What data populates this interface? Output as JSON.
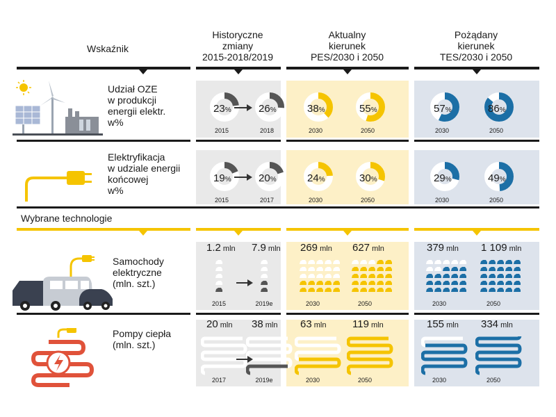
{
  "colors": {
    "black": "#1a1a1a",
    "yellow": "#f5c400",
    "gray": "#e9e9e9",
    "yellowbg": "#fdf0c7",
    "bluebg": "#dde3ec",
    "blue": "#1c6fa6",
    "dark": "#555555"
  },
  "header": {
    "indicator": "Wskaźnik",
    "historical": "Historyczne\nzmiany\n2015-2018/2019",
    "current": "Aktualny\nkierunek\nPES/2030 i 2050",
    "desired": "Pożądany\nkierunek\nTES/2030 i 2050"
  },
  "section_label": "Wybrane technologie",
  "rows": [
    {
      "label": "Udział OZE\nw produkcji\nenergii elektr.\nw%",
      "icon": "renewable-energy-icon",
      "hist": [
        {
          "value": "23",
          "unit": "%",
          "year": "2015",
          "fraction": 0.23
        },
        {
          "value": "26",
          "unit": "%",
          "year": "2018",
          "fraction": 0.26
        }
      ],
      "cur": [
        {
          "value": "38",
          "unit": "%",
          "year": "2030",
          "fraction": 0.38
        },
        {
          "value": "55",
          "unit": "%",
          "year": "2050",
          "fraction": 0.55
        }
      ],
      "des": [
        {
          "value": "57",
          "unit": "%",
          "year": "2030",
          "fraction": 0.57
        },
        {
          "value": "86",
          "unit": "%",
          "year": "2050",
          "fraction": 0.86
        }
      ]
    },
    {
      "label": "Elektryfikacja\nw udziale energii\nkońcowej\nw%",
      "icon": "plug-icon",
      "hist": [
        {
          "value": "19",
          "unit": "%",
          "year": "2015",
          "fraction": 0.19
        },
        {
          "value": "20",
          "unit": "%",
          "year": "2017",
          "fraction": 0.2
        }
      ],
      "cur": [
        {
          "value": "24",
          "unit": "%",
          "year": "2030",
          "fraction": 0.24
        },
        {
          "value": "30",
          "unit": "%",
          "year": "2050",
          "fraction": 0.3
        }
      ],
      "des": [
        {
          "value": "29",
          "unit": "%",
          "year": "2030",
          "fraction": 0.29
        },
        {
          "value": "49",
          "unit": "%",
          "year": "2050",
          "fraction": 0.49
        }
      ]
    },
    {
      "label": "Samochody\nelektryczne\n(mln. szt.)",
      "icon": "electric-vehicles-icon",
      "hist": [
        {
          "value": "1.2",
          "unit": "mln",
          "year": "2015"
        },
        {
          "value": "7.9",
          "unit": "mln",
          "year": "2019e"
        }
      ],
      "cur": [
        {
          "value": "269",
          "unit": "mln",
          "year": "2030"
        },
        {
          "value": "627",
          "unit": "mln",
          "year": "2050"
        }
      ],
      "des": [
        {
          "value": "379",
          "unit": "mln",
          "year": "2030"
        },
        {
          "value": "1 109",
          "unit": "mln",
          "year": "2050"
        }
      ]
    },
    {
      "label": "Pompy ciepła\n(mln. szt.)",
      "icon": "heat-pump-icon",
      "hist": [
        {
          "value": "20",
          "unit": "mln",
          "year": "2017"
        },
        {
          "value": "38",
          "unit": "mln",
          "year": "2019e"
        }
      ],
      "cur": [
        {
          "value": "63",
          "unit": "mln",
          "year": "2030"
        },
        {
          "value": "119",
          "unit": "mln",
          "year": "2050"
        }
      ],
      "des": [
        {
          "value": "155",
          "unit": "mln",
          "year": "2030"
        },
        {
          "value": "334",
          "unit": "mln",
          "year": "2050"
        }
      ]
    }
  ]
}
